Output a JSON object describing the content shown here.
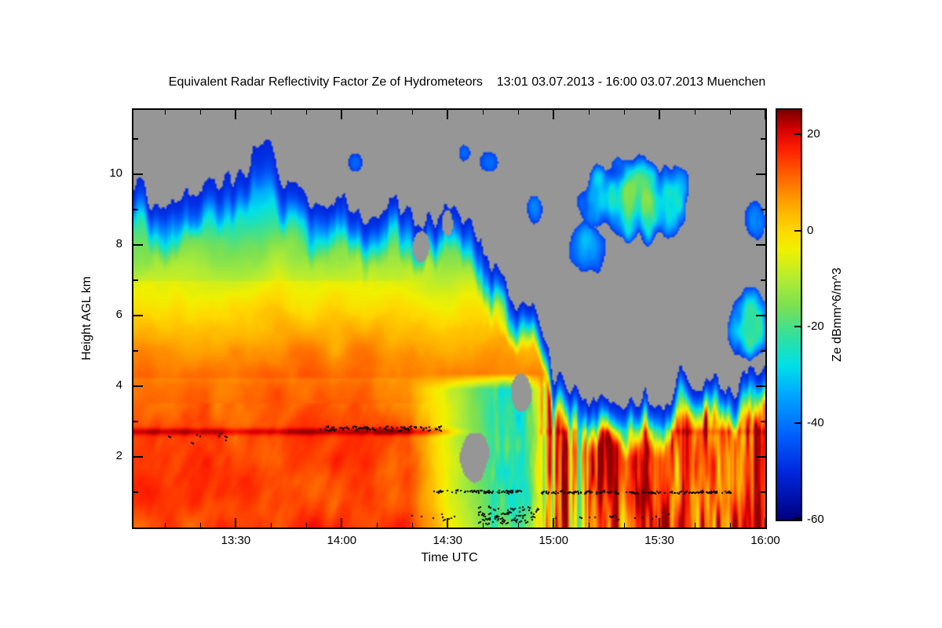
{
  "title": "Equivalent Radar Reflectivity Factor Ze of Hydrometeors    13:01 03.07.2013 - 16:00 03.07.2013 Muenchen",
  "axes": {
    "x": {
      "label": "Time UTC",
      "ticks": [
        "13:30",
        "14:00",
        "14:30",
        "15:00",
        "15:30",
        "16:00"
      ],
      "minor_tick_minutes": 10,
      "start": "13:01",
      "end": "16:00"
    },
    "y": {
      "label": "Height AGL km",
      "ticks": [
        2,
        4,
        6,
        8,
        10
      ],
      "range_km": [
        0,
        11.82
      ]
    }
  },
  "colorbar": {
    "label": "Ze dBmm^6/m^3",
    "ticks": [
      20,
      0,
      -20,
      -40,
      -60
    ],
    "vmin": -60,
    "vmax": 25
  },
  "chart_data": {
    "type": "heatmap",
    "title": "Equivalent Radar Reflectivity Factor Ze of Hydrometeors    13:01 03.07.2013 - 16:00 03.07.2013 Muenchen",
    "xlabel": "Time UTC",
    "ylabel": "Height AGL km",
    "zlabel": "Ze dBmm^6/m^3",
    "x_range_utc": [
      "13:01",
      "16:00"
    ],
    "date": "03.07.2013",
    "location": "Muenchen",
    "y_range_km": [
      0,
      11.82
    ],
    "z_range_dB": [
      -60,
      25
    ],
    "no_echo_color": "#969696",
    "colormap_stops": [
      [
        -60,
        "#000080"
      ],
      [
        -50,
        "#0028e0"
      ],
      [
        -42,
        "#0064ff"
      ],
      [
        -34,
        "#00a8ff"
      ],
      [
        -28,
        "#00e0e8"
      ],
      [
        -22,
        "#30e0a0"
      ],
      [
        -16,
        "#78e055"
      ],
      [
        -10,
        "#b4ec32"
      ],
      [
        -4,
        "#f0f000"
      ],
      [
        0,
        "#ffd800"
      ],
      [
        6,
        "#ffa000"
      ],
      [
        12,
        "#ff5a00"
      ],
      [
        17,
        "#ff1e00"
      ],
      [
        21,
        "#d40000"
      ],
      [
        25,
        "#7c0000"
      ]
    ],
    "cloud_top_profile": {
      "t": [
        0,
        0.04,
        0.08,
        0.12,
        0.155,
        0.19,
        0.215,
        0.245,
        0.28,
        0.315,
        0.345,
        0.375,
        0.41,
        0.445,
        0.48,
        0.515,
        0.545,
        0.575,
        0.605,
        0.635,
        0.665,
        0.695,
        0.73,
        0.77,
        0.81,
        0.85,
        0.89,
        0.93,
        0.965,
        1.0
      ],
      "km": [
        9.8,
        9.4,
        9.9,
        10.1,
        10.0,
        10.3,
        10.7,
        9.7,
        9.2,
        9.5,
        9.0,
        8.8,
        9.3,
        8.7,
        8.8,
        8.5,
        8.2,
        7.5,
        6.6,
        5.7,
        4.7,
        4.1,
        3.9,
        3.8,
        3.9,
        3.8,
        4.0,
        3.9,
        4.1,
        4.5
      ]
    },
    "value_profile": {
      "km": [
        0,
        1.5,
        2.6,
        3.2,
        4.0,
        4.9,
        5.6,
        6.2,
        7.0,
        8.0,
        8.8,
        9.5,
        10.2,
        11.0,
        11.82
      ],
      "dB": [
        15,
        14,
        14,
        12,
        10,
        6,
        2,
        -2,
        -8,
        -16,
        -24,
        -32,
        -40,
        -46,
        -52
      ]
    },
    "melting_layer": {
      "height_km": 2.7,
      "peak_dB": 22,
      "visible_until_t": 0.52
    },
    "upper_cloud_patches": [
      {
        "t": 0.795,
        "h": 9.3,
        "rt": 0.085,
        "rh": 1.2,
        "core": -16
      },
      {
        "t": 0.72,
        "h": 7.9,
        "rt": 0.03,
        "rh": 0.75,
        "core": -30
      },
      {
        "t": 0.975,
        "h": 5.7,
        "rt": 0.032,
        "rh": 1.05,
        "core": -22
      },
      {
        "t": 0.563,
        "h": 10.35,
        "rt": 0.013,
        "rh": 0.3,
        "core": -40
      },
      {
        "t": 0.524,
        "h": 10.6,
        "rt": 0.009,
        "rh": 0.22,
        "core": -42
      },
      {
        "t": 0.35,
        "h": 10.35,
        "rt": 0.011,
        "rh": 0.25,
        "core": -40
      },
      {
        "t": 0.985,
        "h": 8.7,
        "rt": 0.016,
        "rh": 0.55,
        "core": -36
      },
      {
        "t": 0.635,
        "h": 9.0,
        "rt": 0.012,
        "rh": 0.4,
        "core": -38
      }
    ],
    "clear_holes": [
      {
        "t": 0.455,
        "h": 7.9,
        "rt": 0.013,
        "rh": 0.5
      },
      {
        "t": 0.54,
        "h": 2.0,
        "rt": 0.022,
        "rh": 0.65
      },
      {
        "t": 0.615,
        "h": 3.8,
        "rt": 0.018,
        "rh": 0.55
      },
      {
        "t": 0.497,
        "h": 8.6,
        "rt": 0.008,
        "rh": 0.35
      }
    ],
    "dot_clusters": [
      {
        "t0": 0.01,
        "t1": 0.155,
        "h": 2.52,
        "n": 16,
        "jh": 0.12,
        "gap": 0.3
      },
      {
        "t0": 0.295,
        "t1": 0.49,
        "h": 2.8,
        "n": 110,
        "jh": 0.06,
        "gap": 0.18
      },
      {
        "t0": 0.475,
        "t1": 0.615,
        "h": 1.02,
        "n": 70,
        "jh": 0.035,
        "gap": 0.15
      },
      {
        "t0": 0.645,
        "t1": 0.945,
        "h": 0.99,
        "n": 130,
        "jh": 0.03,
        "gap": 0.15
      },
      {
        "t0": 0.435,
        "t1": 0.555,
        "h": 0.3,
        "n": 20,
        "jh": 0.1,
        "gap": 0.35
      },
      {
        "t0": 0.545,
        "t1": 0.64,
        "h": 0.35,
        "n": 90,
        "jh": 0.25,
        "gap": 0.1
      },
      {
        "t0": 0.66,
        "t1": 0.88,
        "h": 0.28,
        "n": 26,
        "jh": 0.1,
        "gap": 0.3
      }
    ],
    "features": [
      "Deep stratiform echo from near surface to ~10 km before 14:30",
      "Bright band (melting layer) near 2.7 km until ~14:25",
      "Echo-free gray gap at mid levels after ~15:00",
      "Shallow convective streaks below ~4 km after 15:00",
      "Detached high cloud patches 8-10.5 km around 15:10-15:45",
      "Black point targets near 2.8 km and ~1.0 km"
    ]
  }
}
